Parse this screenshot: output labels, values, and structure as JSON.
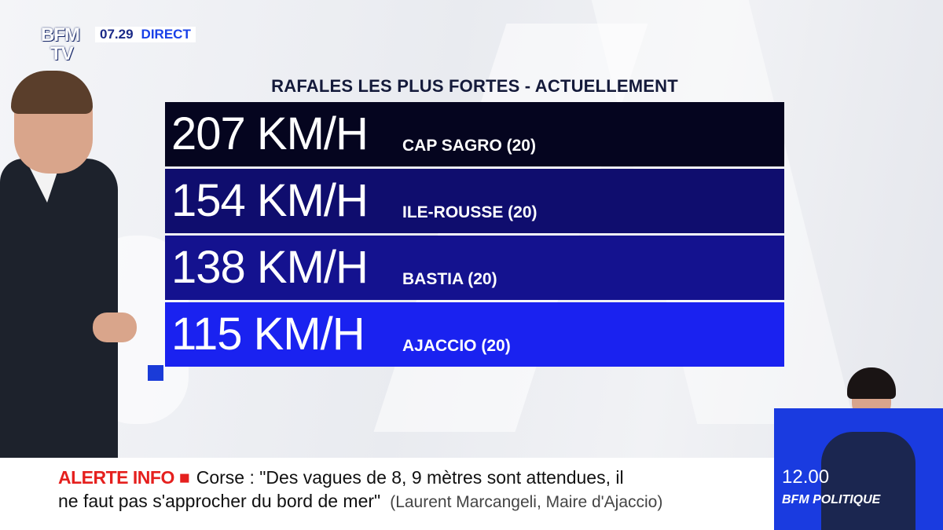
{
  "channel": {
    "logo_line1": "BFM",
    "logo_line2": "TV",
    "clock": "07.29",
    "live_label": "DIRECT"
  },
  "graphic": {
    "title": "RAFALES LES PLUS FORTES - ACTUELLEMENT",
    "rows": [
      {
        "speed": "207 KM/H",
        "place": "CAP SAGRO (20)"
      },
      {
        "speed": "154 KM/H",
        "place": "ILE-ROUSSE (20)"
      },
      {
        "speed": "138 KM/H",
        "place": "BASTIA (20)"
      },
      {
        "speed": "115 KM/H",
        "place": "AJACCIO (20)"
      }
    ],
    "colors": [
      "#05051f",
      "#0f0d6e",
      "#14128f",
      "#1a22f0"
    ]
  },
  "ticker": {
    "alert_label": "ALERTE INFO",
    "headline_line1": "Corse : \"Des vagues de 8, 9 mètres sont attendues, il",
    "headline_line2": "ne faut pas s'approcher du bord de mer\"",
    "source": "(Laurent Marcangeli, Maire d'Ajaccio)"
  },
  "next_program": {
    "time": "12.00",
    "name": "BFM POLITIQUE"
  }
}
